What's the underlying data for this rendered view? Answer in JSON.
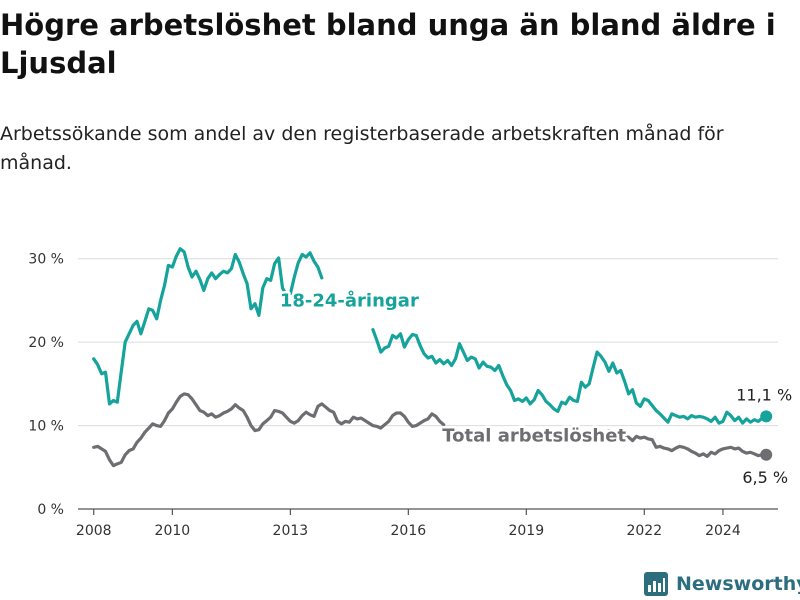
{
  "title": "Högre arbetslöshet bland unga än bland äldre i Ljusdal",
  "subtitle": "Arbetssökande som andel av den registerbaserade arbetskraften månad för månad.",
  "brand": {
    "name": "Newsworthy",
    "icon": "bar-chart-logo-icon",
    "color": "#2d6e7e"
  },
  "chart_data": {
    "type": "line",
    "title": "",
    "xlabel": "",
    "ylabel": "",
    "x_range": [
      2007.6,
      2025.4
    ],
    "ylim": [
      0,
      32
    ],
    "x_ticks": [
      {
        "value": 2008,
        "label": "2008"
      },
      {
        "value": 2010,
        "label": "2010"
      },
      {
        "value": 2013,
        "label": "2013"
      },
      {
        "value": 2016,
        "label": "2016"
      },
      {
        "value": 2019,
        "label": "2019"
      },
      {
        "value": 2022,
        "label": "2022"
      },
      {
        "value": 2024,
        "label": "2024"
      }
    ],
    "y_ticks": [
      {
        "value": 0,
        "label": "0 %"
      },
      {
        "value": 10,
        "label": "10 %"
      },
      {
        "value": 20,
        "label": "20 %"
      },
      {
        "value": 30,
        "label": "30 %"
      }
    ],
    "grid": true,
    "series": [
      {
        "name": "18-24-åringar",
        "color": "#16a39b",
        "end_label": "11,1 %",
        "points": [
          [
            2008.0,
            18.0
          ],
          [
            2008.1,
            17.3
          ],
          [
            2008.2,
            16.2
          ],
          [
            2008.3,
            16.4
          ],
          [
            2008.4,
            12.6
          ],
          [
            2008.5,
            13.0
          ],
          [
            2008.6,
            12.8
          ],
          [
            2008.7,
            16.5
          ],
          [
            2008.8,
            20.0
          ],
          [
            2008.9,
            21.0
          ],
          [
            2009.0,
            22.0
          ],
          [
            2009.1,
            22.5
          ],
          [
            2009.2,
            21.0
          ],
          [
            2009.3,
            22.5
          ],
          [
            2009.4,
            24.0
          ],
          [
            2009.5,
            23.8
          ],
          [
            2009.6,
            22.8
          ],
          [
            2009.7,
            25.0
          ],
          [
            2009.8,
            26.8
          ],
          [
            2009.9,
            29.2
          ],
          [
            2010.0,
            29.0
          ],
          [
            2010.1,
            30.3
          ],
          [
            2010.2,
            31.2
          ],
          [
            2010.3,
            30.8
          ],
          [
            2010.4,
            29.0
          ],
          [
            2010.5,
            27.8
          ],
          [
            2010.6,
            28.5
          ],
          [
            2010.7,
            27.5
          ],
          [
            2010.8,
            26.2
          ],
          [
            2010.9,
            27.6
          ],
          [
            2011.0,
            28.3
          ],
          [
            2011.1,
            27.6
          ],
          [
            2011.2,
            28.1
          ],
          [
            2011.3,
            28.5
          ],
          [
            2011.4,
            28.3
          ],
          [
            2011.5,
            28.8
          ],
          [
            2011.6,
            30.5
          ],
          [
            2011.7,
            29.6
          ],
          [
            2011.8,
            28.2
          ],
          [
            2011.9,
            27.0
          ],
          [
            2012.0,
            24.0
          ],
          [
            2012.1,
            24.6
          ],
          [
            2012.2,
            23.2
          ],
          [
            2012.3,
            26.5
          ],
          [
            2012.4,
            27.6
          ],
          [
            2012.5,
            27.4
          ],
          [
            2012.6,
            29.4
          ],
          [
            2012.7,
            30.1
          ],
          [
            2012.8,
            26.5
          ],
          [
            2012.9,
            25.6
          ],
          [
            2013.0,
            25.8
          ],
          [
            2013.1,
            27.8
          ],
          [
            2013.2,
            29.5
          ],
          [
            2013.3,
            30.5
          ],
          [
            2013.4,
            30.2
          ],
          [
            2013.5,
            30.7
          ],
          [
            2013.6,
            29.7
          ],
          [
            2013.7,
            29.0
          ],
          [
            2013.8,
            27.7
          ]
        ],
        "points_after_label": [
          [
            2015.1,
            21.5
          ],
          [
            2015.2,
            20.2
          ],
          [
            2015.3,
            18.8
          ],
          [
            2015.4,
            19.3
          ],
          [
            2015.5,
            19.5
          ],
          [
            2015.6,
            20.8
          ],
          [
            2015.7,
            20.5
          ],
          [
            2015.8,
            21.0
          ],
          [
            2015.9,
            19.4
          ],
          [
            2016.0,
            20.3
          ],
          [
            2016.1,
            20.9
          ],
          [
            2016.2,
            20.8
          ],
          [
            2016.3,
            19.6
          ],
          [
            2016.4,
            18.6
          ],
          [
            2016.5,
            18.1
          ],
          [
            2016.6,
            18.3
          ],
          [
            2016.7,
            17.5
          ],
          [
            2016.8,
            17.9
          ],
          [
            2016.9,
            17.4
          ],
          [
            2017.0,
            17.8
          ],
          [
            2017.1,
            17.2
          ],
          [
            2017.2,
            18.0
          ],
          [
            2017.3,
            19.8
          ],
          [
            2017.4,
            18.8
          ],
          [
            2017.5,
            17.8
          ],
          [
            2017.6,
            18.2
          ],
          [
            2017.7,
            18.0
          ],
          [
            2017.8,
            16.9
          ],
          [
            2017.9,
            17.6
          ],
          [
            2018.0,
            17.1
          ],
          [
            2018.1,
            17.0
          ],
          [
            2018.2,
            16.6
          ],
          [
            2018.3,
            17.2
          ],
          [
            2018.4,
            16.0
          ],
          [
            2018.5,
            14.9
          ],
          [
            2018.6,
            14.2
          ],
          [
            2018.7,
            13.0
          ],
          [
            2018.8,
            13.2
          ],
          [
            2018.9,
            12.9
          ],
          [
            2019.0,
            13.3
          ],
          [
            2019.1,
            12.6
          ],
          [
            2019.2,
            13.1
          ],
          [
            2019.3,
            14.2
          ],
          [
            2019.4,
            13.7
          ],
          [
            2019.5,
            12.9
          ],
          [
            2019.6,
            12.5
          ],
          [
            2019.7,
            12.0
          ],
          [
            2019.8,
            11.7
          ],
          [
            2019.9,
            12.8
          ],
          [
            2020.0,
            12.6
          ],
          [
            2020.1,
            13.4
          ],
          [
            2020.2,
            13.0
          ],
          [
            2020.3,
            12.9
          ],
          [
            2020.4,
            15.2
          ],
          [
            2020.5,
            14.6
          ],
          [
            2020.6,
            15.0
          ],
          [
            2020.7,
            17.0
          ],
          [
            2020.8,
            18.8
          ],
          [
            2020.9,
            18.3
          ],
          [
            2021.0,
            17.6
          ],
          [
            2021.1,
            16.5
          ],
          [
            2021.2,
            17.5
          ],
          [
            2021.3,
            16.3
          ],
          [
            2021.4,
            16.6
          ],
          [
            2021.5,
            15.3
          ],
          [
            2021.6,
            13.8
          ],
          [
            2021.7,
            14.3
          ],
          [
            2021.8,
            12.7
          ],
          [
            2021.9,
            12.3
          ],
          [
            2022.0,
            13.2
          ],
          [
            2022.1,
            13.0
          ],
          [
            2022.2,
            12.4
          ],
          [
            2022.3,
            11.8
          ],
          [
            2022.4,
            11.4
          ],
          [
            2022.5,
            10.9
          ],
          [
            2022.6,
            10.4
          ],
          [
            2022.7,
            11.4
          ],
          [
            2022.8,
            11.2
          ],
          [
            2022.9,
            11.0
          ],
          [
            2023.0,
            11.1
          ],
          [
            2023.1,
            10.8
          ],
          [
            2023.2,
            11.2
          ],
          [
            2023.3,
            11.0
          ],
          [
            2023.4,
            11.1
          ],
          [
            2023.5,
            11.0
          ],
          [
            2023.6,
            10.8
          ],
          [
            2023.7,
            10.5
          ],
          [
            2023.8,
            11.0
          ],
          [
            2023.9,
            10.3
          ],
          [
            2024.0,
            10.5
          ],
          [
            2024.1,
            11.6
          ],
          [
            2024.2,
            11.2
          ],
          [
            2024.3,
            10.6
          ],
          [
            2024.4,
            11.0
          ],
          [
            2024.5,
            10.3
          ],
          [
            2024.6,
            10.8
          ],
          [
            2024.7,
            10.4
          ],
          [
            2024.8,
            10.7
          ],
          [
            2024.9,
            10.5
          ],
          [
            2025.0,
            10.9
          ],
          [
            2025.1,
            11.1
          ]
        ]
      },
      {
        "name": "Total arbetslöshet",
        "color": "#6e6e72",
        "end_label": "6,5 %",
        "points": [
          [
            2008.0,
            7.4
          ],
          [
            2008.1,
            7.5
          ],
          [
            2008.2,
            7.2
          ],
          [
            2008.3,
            6.9
          ],
          [
            2008.4,
            5.9
          ],
          [
            2008.5,
            5.2
          ],
          [
            2008.6,
            5.4
          ],
          [
            2008.7,
            5.6
          ],
          [
            2008.8,
            6.5
          ],
          [
            2008.9,
            7.0
          ],
          [
            2009.0,
            7.2
          ],
          [
            2009.1,
            8.0
          ],
          [
            2009.2,
            8.5
          ],
          [
            2009.3,
            9.2
          ],
          [
            2009.4,
            9.7
          ],
          [
            2009.5,
            10.2
          ],
          [
            2009.6,
            10.0
          ],
          [
            2009.7,
            9.9
          ],
          [
            2009.8,
            10.6
          ],
          [
            2009.9,
            11.5
          ],
          [
            2010.0,
            12.0
          ],
          [
            2010.1,
            12.8
          ],
          [
            2010.2,
            13.5
          ],
          [
            2010.3,
            13.8
          ],
          [
            2010.4,
            13.7
          ],
          [
            2010.5,
            13.2
          ],
          [
            2010.6,
            12.5
          ],
          [
            2010.7,
            11.8
          ],
          [
            2010.8,
            11.6
          ],
          [
            2010.9,
            11.2
          ],
          [
            2011.0,
            11.4
          ],
          [
            2011.1,
            11.0
          ],
          [
            2011.2,
            11.2
          ],
          [
            2011.3,
            11.5
          ],
          [
            2011.4,
            11.7
          ],
          [
            2011.5,
            12.0
          ],
          [
            2011.6,
            12.5
          ],
          [
            2011.7,
            12.1
          ],
          [
            2011.8,
            11.8
          ],
          [
            2011.9,
            11.0
          ],
          [
            2012.0,
            10.0
          ],
          [
            2012.1,
            9.4
          ],
          [
            2012.2,
            9.5
          ],
          [
            2012.3,
            10.2
          ],
          [
            2012.4,
            10.6
          ],
          [
            2012.5,
            11.0
          ],
          [
            2012.6,
            11.8
          ],
          [
            2012.7,
            11.7
          ],
          [
            2012.8,
            11.5
          ],
          [
            2012.9,
            11.0
          ],
          [
            2013.0,
            10.5
          ],
          [
            2013.1,
            10.3
          ],
          [
            2013.2,
            10.6
          ],
          [
            2013.3,
            11.2
          ],
          [
            2013.4,
            11.6
          ],
          [
            2013.5,
            11.3
          ],
          [
            2013.6,
            11.1
          ],
          [
            2013.7,
            12.3
          ],
          [
            2013.8,
            12.6
          ],
          [
            2013.9,
            12.2
          ],
          [
            2014.0,
            11.8
          ],
          [
            2014.1,
            11.6
          ],
          [
            2014.2,
            10.5
          ],
          [
            2014.3,
            10.2
          ],
          [
            2014.4,
            10.5
          ],
          [
            2014.5,
            10.4
          ],
          [
            2014.6,
            11.0
          ],
          [
            2014.7,
            10.8
          ],
          [
            2014.8,
            10.9
          ],
          [
            2014.9,
            10.6
          ],
          [
            2015.0,
            10.3
          ],
          [
            2015.1,
            10.0
          ],
          [
            2015.2,
            9.9
          ],
          [
            2015.3,
            9.7
          ],
          [
            2015.4,
            10.1
          ],
          [
            2015.5,
            10.5
          ],
          [
            2015.6,
            11.2
          ],
          [
            2015.7,
            11.5
          ],
          [
            2015.8,
            11.5
          ],
          [
            2015.9,
            11.1
          ],
          [
            2016.0,
            10.4
          ],
          [
            2016.1,
            9.9
          ],
          [
            2016.2,
            10.0
          ],
          [
            2016.3,
            10.3
          ],
          [
            2016.4,
            10.6
          ],
          [
            2016.5,
            10.8
          ],
          [
            2016.6,
            11.4
          ],
          [
            2016.7,
            11.1
          ],
          [
            2016.8,
            10.5
          ],
          [
            2016.9,
            10.1
          ]
        ],
        "points_after_label": [
          [
            2021.1,
            9.4
          ],
          [
            2021.2,
            9.3
          ],
          [
            2021.3,
            8.9
          ],
          [
            2021.4,
            8.6
          ],
          [
            2021.5,
            8.8
          ],
          [
            2021.6,
            8.6
          ],
          [
            2021.7,
            8.2
          ],
          [
            2021.8,
            8.7
          ],
          [
            2021.9,
            8.5
          ],
          [
            2022.0,
            8.6
          ],
          [
            2022.1,
            8.4
          ],
          [
            2022.2,
            8.3
          ],
          [
            2022.3,
            7.4
          ],
          [
            2022.4,
            7.5
          ],
          [
            2022.5,
            7.3
          ],
          [
            2022.6,
            7.2
          ],
          [
            2022.7,
            7.0
          ],
          [
            2022.8,
            7.3
          ],
          [
            2022.9,
            7.5
          ],
          [
            2023.0,
            7.4
          ],
          [
            2023.1,
            7.2
          ],
          [
            2023.2,
            6.9
          ],
          [
            2023.3,
            6.7
          ],
          [
            2023.4,
            6.4
          ],
          [
            2023.5,
            6.6
          ],
          [
            2023.6,
            6.3
          ],
          [
            2023.7,
            6.8
          ],
          [
            2023.8,
            6.6
          ],
          [
            2023.9,
            7.0
          ],
          [
            2024.0,
            7.2
          ],
          [
            2024.1,
            7.3
          ],
          [
            2024.2,
            7.4
          ],
          [
            2024.3,
            7.2
          ],
          [
            2024.4,
            7.3
          ],
          [
            2024.5,
            6.9
          ],
          [
            2024.6,
            6.7
          ],
          [
            2024.7,
            6.8
          ],
          [
            2024.8,
            6.6
          ],
          [
            2024.9,
            6.4
          ],
          [
            2025.0,
            6.5
          ],
          [
            2025.1,
            6.5
          ]
        ]
      }
    ],
    "annotations": [
      {
        "text": "18-24-åringar",
        "series": 0,
        "x": 2014.5,
        "y": 25.0
      },
      {
        "text": "Total arbetslöshet",
        "series": 1,
        "x": 2019.2,
        "y": 8.8
      }
    ]
  }
}
